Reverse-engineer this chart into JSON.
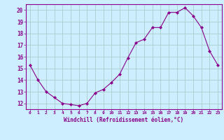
{
  "x": [
    0,
    1,
    2,
    3,
    4,
    5,
    6,
    7,
    8,
    9,
    10,
    11,
    12,
    13,
    14,
    15,
    16,
    17,
    18,
    19,
    20,
    21,
    22,
    23
  ],
  "y": [
    15.3,
    14.0,
    13.0,
    12.5,
    12.0,
    11.9,
    11.8,
    12.0,
    12.9,
    13.2,
    13.8,
    14.5,
    15.9,
    17.2,
    17.5,
    18.5,
    18.5,
    19.8,
    19.8,
    20.2,
    19.5,
    18.5,
    16.5,
    15.3
  ],
  "line_color": "#8B008B",
  "marker_color": "#8B008B",
  "bg_color": "#cceeff",
  "grid_color": "#aacccc",
  "xlabel": "Windchill (Refroidissement éolien,°C)",
  "ylabel_ticks": [
    12,
    13,
    14,
    15,
    16,
    17,
    18,
    19,
    20
  ],
  "xlim": [
    -0.5,
    23.5
  ],
  "ylim": [
    11.5,
    20.5
  ],
  "xticks": [
    0,
    1,
    2,
    3,
    4,
    5,
    6,
    7,
    8,
    9,
    10,
    11,
    12,
    13,
    14,
    15,
    16,
    17,
    18,
    19,
    20,
    21,
    22,
    23
  ]
}
